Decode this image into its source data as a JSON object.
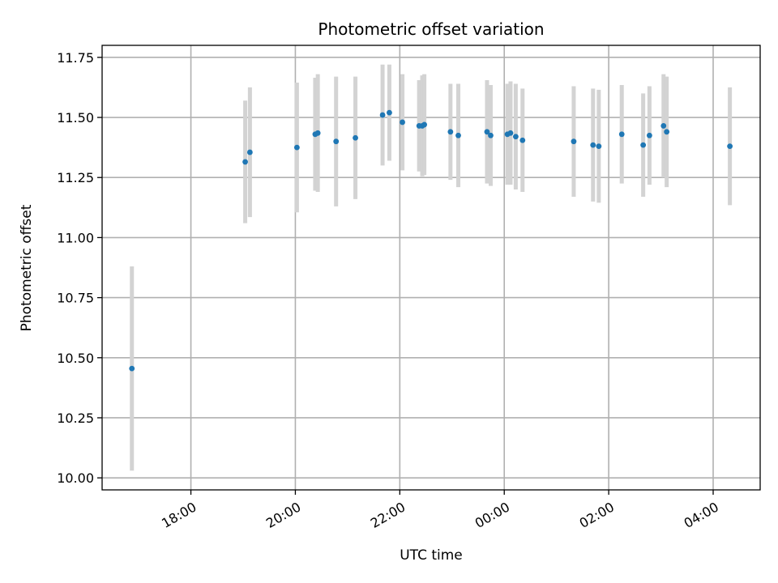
{
  "chart_data": {
    "type": "scatter",
    "title": "Photometric offset variation",
    "xlabel": "UTC time",
    "ylabel": "Photometric offset",
    "x_unit": "hours since 00:00 UTC (relative to midnight)",
    "xlim": [
      -7.7,
      4.9
    ],
    "ylim": [
      9.95,
      11.8
    ],
    "grid": true,
    "x_ticks": [
      {
        "value": -6,
        "label": "18:00"
      },
      {
        "value": -4,
        "label": "20:00"
      },
      {
        "value": -2,
        "label": "22:00"
      },
      {
        "value": 0,
        "label": "00:00"
      },
      {
        "value": 2,
        "label": "02:00"
      },
      {
        "value": 4,
        "label": "04:00"
      }
    ],
    "y_ticks": [
      {
        "value": 10.0,
        "label": "10.00"
      },
      {
        "value": 10.25,
        "label": "10.25"
      },
      {
        "value": 10.5,
        "label": "10.50"
      },
      {
        "value": 10.75,
        "label": "10.75"
      },
      {
        "value": 11.0,
        "label": "11.00"
      },
      {
        "value": 11.25,
        "label": "11.25"
      },
      {
        "value": 11.5,
        "label": "11.50"
      },
      {
        "value": 11.75,
        "label": "11.75"
      }
    ],
    "point_color": "#1f77b4",
    "errorbar_color": "#d3d3d3",
    "points": [
      {
        "x": -7.13,
        "y": 10.455,
        "err": 0.425
      },
      {
        "x": -4.96,
        "y": 11.315,
        "err": 0.255
      },
      {
        "x": -4.87,
        "y": 11.355,
        "err": 0.27
      },
      {
        "x": -3.97,
        "y": 11.375,
        "err": 0.27
      },
      {
        "x": -3.62,
        "y": 11.43,
        "err": 0.235
      },
      {
        "x": -3.57,
        "y": 11.435,
        "err": 0.245
      },
      {
        "x": -3.22,
        "y": 11.4,
        "err": 0.27
      },
      {
        "x": -2.85,
        "y": 11.415,
        "err": 0.255
      },
      {
        "x": -2.33,
        "y": 11.51,
        "err": 0.21
      },
      {
        "x": -2.2,
        "y": 11.52,
        "err": 0.2
      },
      {
        "x": -1.95,
        "y": 11.48,
        "err": 0.2
      },
      {
        "x": -1.63,
        "y": 11.465,
        "err": 0.19
      },
      {
        "x": -1.57,
        "y": 11.465,
        "err": 0.21
      },
      {
        "x": -1.53,
        "y": 11.47,
        "err": 0.21
      },
      {
        "x": -1.03,
        "y": 11.44,
        "err": 0.2
      },
      {
        "x": -0.88,
        "y": 11.425,
        "err": 0.215
      },
      {
        "x": -0.33,
        "y": 11.44,
        "err": 0.215
      },
      {
        "x": -0.26,
        "y": 11.425,
        "err": 0.21
      },
      {
        "x": 0.06,
        "y": 11.43,
        "err": 0.21
      },
      {
        "x": 0.12,
        "y": 11.435,
        "err": 0.215
      },
      {
        "x": 0.22,
        "y": 11.42,
        "err": 0.22
      },
      {
        "x": 0.35,
        "y": 11.405,
        "err": 0.215
      },
      {
        "x": 1.33,
        "y": 11.4,
        "err": 0.23
      },
      {
        "x": 1.7,
        "y": 11.385,
        "err": 0.235
      },
      {
        "x": 1.81,
        "y": 11.38,
        "err": 0.235
      },
      {
        "x": 2.25,
        "y": 11.43,
        "err": 0.205
      },
      {
        "x": 2.66,
        "y": 11.385,
        "err": 0.215
      },
      {
        "x": 2.78,
        "y": 11.425,
        "err": 0.205
      },
      {
        "x": 3.05,
        "y": 11.465,
        "err": 0.215
      },
      {
        "x": 3.11,
        "y": 11.44,
        "err": 0.23
      },
      {
        "x": 4.32,
        "y": 11.38,
        "err": 0.245
      }
    ]
  }
}
